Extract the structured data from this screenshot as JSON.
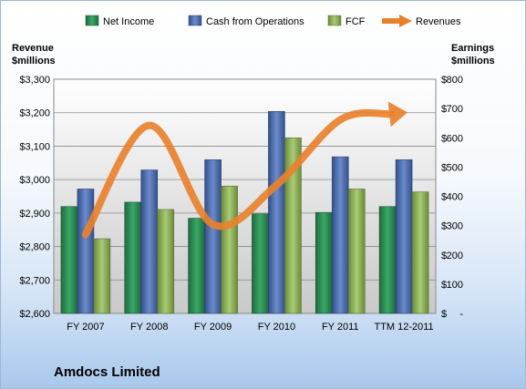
{
  "chart_data": {
    "type": "bar",
    "company": "Amdocs Limited",
    "categories": [
      "FY 2007",
      "FY 2008",
      "FY 2009",
      "FY 2010",
      "FY 2011",
      "TTM 12-2011"
    ],
    "left_axis": {
      "label_line1": "Revenue",
      "label_line2": "$millions",
      "range": [
        2600,
        3300
      ],
      "ticks": [
        "$2,600",
        "$2,700",
        "$2,800",
        "$2,900",
        "$3,000",
        "$3,100",
        "$3,200",
        "$3,300"
      ]
    },
    "right_axis": {
      "label_line1": "Earnings",
      "label_line2": "$millions",
      "range": [
        0,
        800
      ],
      "ticks": [
        "$-",
        "$100",
        "$200",
        "$300",
        "$400",
        "$500",
        "$600",
        "$700",
        "$800"
      ]
    },
    "series": [
      {
        "name": "Net Income",
        "type": "bar",
        "axis": "right",
        "color": "#2e8b57",
        "values": [
          365,
          380,
          325,
          340,
          345,
          365
        ]
      },
      {
        "name": "Cash from Operations",
        "type": "bar",
        "axis": "right",
        "color": "#4f6fb0",
        "values": [
          425,
          490,
          525,
          690,
          535,
          525
        ]
      },
      {
        "name": "FCF",
        "type": "bar",
        "axis": "right",
        "color": "#8fb35a",
        "values": [
          255,
          355,
          435,
          600,
          425,
          415
        ]
      },
      {
        "name": "Revenues",
        "type": "line",
        "axis": "left",
        "color": "#e8812e",
        "values": [
          2836,
          3162,
          2866,
          2984,
          3179,
          3200
        ]
      }
    ],
    "grid": true,
    "legend_position": "top"
  }
}
